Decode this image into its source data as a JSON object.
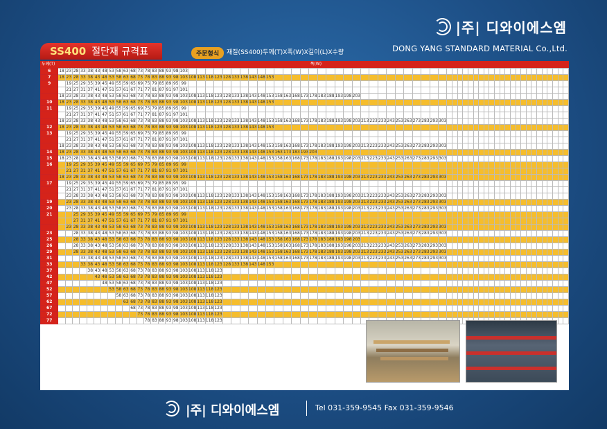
{
  "brand": {
    "name_kr": "|주| 디와이에스엠",
    "name_en": "DONG YANG STANDARD MATERIAL Co.,Ltd."
  },
  "title": {
    "main": "SS400",
    "sub": "절단재 규격표"
  },
  "order": {
    "badge": "주문형식",
    "text": "재질(SS400)두께(T)X폭(W)X길이(L)X수량"
  },
  "table": {
    "thickness_header": "두께(T)",
    "width_header": "폭(W)"
  },
  "footer": {
    "logo": "|주| 디와이에스엠",
    "tel": "Tel 031-359-9545  Fax 031-359-9546"
  },
  "rows": [
    {
      "t": "6",
      "y": false,
      "s": 0,
      "n": 15,
      "v": [
        18,
        23,
        28,
        33,
        38,
        43,
        48,
        53,
        58,
        63,
        68,
        73,
        78,
        83,
        88,
        93,
        98,
        103
      ]
    },
    {
      "t": "7",
      "y": true,
      "s": 0,
      "n": 19,
      "v": [
        18,
        23,
        28,
        33,
        38,
        43,
        48,
        53,
        58,
        63,
        68,
        73,
        78,
        83,
        88,
        93,
        98,
        103,
        108,
        113,
        118,
        123,
        128,
        133,
        138,
        143,
        148,
        153
      ]
    },
    {
      "t": "9",
      "y": false,
      "s": 1,
      "n": 0,
      "v": [
        19,
        25,
        29,
        35,
        39,
        45,
        49,
        55,
        59,
        65,
        69,
        75,
        79,
        85,
        89,
        95,
        99
      ]
    },
    {
      "t": "",
      "y": false,
      "s": 1,
      "n": 0,
      "v": [
        21,
        27,
        31,
        37,
        41,
        47,
        51,
        57,
        61,
        67,
        71,
        77,
        81,
        87,
        91,
        97,
        101
      ]
    },
    {
      "t": "",
      "y": false,
      "s": 0,
      "n": 0,
      "v": [
        18,
        23,
        28,
        33,
        38,
        43,
        48,
        53,
        58,
        63,
        68,
        73,
        78,
        83,
        88,
        93,
        98,
        103,
        108,
        113,
        118,
        123,
        128,
        133,
        138,
        143,
        148,
        153,
        158,
        163,
        168,
        173,
        178,
        183,
        188,
        193,
        198,
        203
      ]
    },
    {
      "t": "10",
      "y": true,
      "s": 0,
      "n": 0,
      "v": [
        18,
        23,
        28,
        33,
        38,
        43,
        48,
        53,
        58,
        63,
        68,
        73,
        78,
        83,
        88,
        93,
        98,
        103,
        108,
        113,
        118,
        123,
        128,
        133,
        138,
        143,
        148,
        153
      ]
    },
    {
      "t": "11",
      "y": false,
      "s": 1,
      "n": 0,
      "v": [
        19,
        25,
        29,
        35,
        39,
        45,
        49,
        55,
        59,
        65,
        69,
        75,
        79,
        85,
        89,
        95,
        99
      ]
    },
    {
      "t": "",
      "y": false,
      "s": 1,
      "n": 0,
      "v": [
        21,
        27,
        31,
        37,
        41,
        47,
        51,
        57,
        61,
        67,
        71,
        77,
        81,
        87,
        91,
        97,
        101
      ]
    },
    {
      "t": "",
      "y": false,
      "s": 0,
      "n": 0,
      "v": [
        18,
        23,
        28,
        33,
        38,
        43,
        48,
        53,
        58,
        63,
        68,
        73,
        78,
        83,
        88,
        93,
        98,
        103,
        108,
        113,
        118,
        123,
        128,
        133,
        138,
        143,
        148,
        153,
        158,
        163,
        168,
        173,
        178,
        183,
        188,
        193,
        198,
        203,
        213,
        223,
        233,
        243,
        253,
        263,
        273,
        283,
        293,
        303
      ]
    },
    {
      "t": "12",
      "y": true,
      "s": 0,
      "n": 0,
      "v": [
        18,
        23,
        28,
        33,
        38,
        43,
        48,
        53,
        58,
        63,
        68,
        73,
        78,
        83,
        88,
        93,
        98,
        103,
        108,
        113,
        118,
        123,
        128,
        133,
        138,
        143,
        148,
        153
      ]
    },
    {
      "t": "13",
      "y": false,
      "s": 1,
      "n": 0,
      "v": [
        19,
        25,
        29,
        35,
        39,
        45,
        49,
        55,
        59,
        65,
        69,
        75,
        79,
        85,
        89,
        95,
        99
      ]
    },
    {
      "t": "",
      "y": false,
      "s": 1,
      "n": 0,
      "v": [
        21,
        27,
        31,
        37,
        41,
        47,
        51,
        57,
        61,
        67,
        71,
        77,
        81,
        87,
        91,
        97,
        101
      ]
    },
    {
      "t": "",
      "y": false,
      "s": 0,
      "n": 0,
      "v": [
        18,
        23,
        28,
        33,
        38,
        43,
        48,
        53,
        58,
        63,
        68,
        73,
        78,
        83,
        88,
        93,
        98,
        103,
        108,
        113,
        118,
        123,
        128,
        133,
        138,
        143,
        148,
        153,
        158,
        163,
        168,
        173,
        178,
        183,
        188,
        193,
        198,
        203,
        213,
        223,
        233,
        243,
        253,
        263,
        273,
        283,
        293,
        303
      ]
    },
    {
      "t": "14",
      "y": true,
      "s": 0,
      "n": 0,
      "v": [
        18,
        23,
        28,
        33,
        38,
        43,
        48,
        53,
        58,
        63,
        68,
        73,
        78,
        83,
        88,
        93,
        98,
        103,
        108,
        113,
        118,
        123,
        128,
        133,
        138,
        143,
        148,
        153,
        163,
        173,
        183,
        193,
        203
      ]
    },
    {
      "t": "15",
      "y": false,
      "s": 0,
      "n": 0,
      "v": [
        18,
        23,
        28,
        33,
        38,
        43,
        48,
        53,
        58,
        63,
        68,
        73,
        78,
        83,
        88,
        93,
        98,
        103,
        108,
        113,
        118,
        123,
        128,
        133,
        138,
        143,
        148,
        153,
        158,
        163,
        168,
        173,
        178,
        183,
        188,
        193,
        198,
        203,
        213,
        223,
        233,
        243,
        253,
        263,
        273,
        283,
        293,
        303
      ]
    },
    {
      "t": "16",
      "y": true,
      "s": 1,
      "n": 0,
      "v": [
        19,
        25,
        29,
        35,
        39,
        45,
        49,
        55,
        59,
        65,
        69,
        75,
        79,
        85,
        89,
        95,
        99
      ]
    },
    {
      "t": "",
      "y": true,
      "s": 1,
      "n": 0,
      "v": [
        21,
        27,
        31,
        37,
        41,
        47,
        51,
        57,
        61,
        67,
        71,
        77,
        81,
        87,
        91,
        97,
        101
      ]
    },
    {
      "t": "",
      "y": true,
      "s": 0,
      "n": 0,
      "v": [
        18,
        23,
        28,
        33,
        38,
        43,
        48,
        53,
        58,
        63,
        68,
        73,
        78,
        83,
        88,
        93,
        98,
        103,
        108,
        113,
        118,
        123,
        128,
        133,
        138,
        143,
        148,
        153,
        158,
        163,
        168,
        173,
        178,
        183,
        188,
        193,
        198,
        203,
        213,
        223,
        233,
        243,
        253,
        263,
        273,
        283,
        293,
        303
      ]
    },
    {
      "t": "17",
      "y": false,
      "s": 1,
      "n": 0,
      "v": [
        19,
        25,
        29,
        35,
        39,
        45,
        49,
        55,
        59,
        65,
        69,
        75,
        79,
        85,
        89,
        95,
        99
      ]
    },
    {
      "t": "",
      "y": false,
      "s": 1,
      "n": 0,
      "v": [
        21,
        27,
        31,
        37,
        41,
        47,
        51,
        57,
        61,
        67,
        71,
        77,
        81,
        87,
        91,
        97,
        101
      ]
    },
    {
      "t": "",
      "y": false,
      "s": 1,
      "n": 0,
      "v": [
        23,
        28,
        33,
        38,
        43,
        48,
        53,
        58,
        63,
        68,
        73,
        78,
        83,
        88,
        93,
        98,
        103,
        108,
        113,
        118,
        123,
        128,
        133,
        138,
        143,
        148,
        153,
        158,
        163,
        168,
        173,
        178,
        183,
        188,
        193,
        198,
        203,
        213,
        223,
        233,
        243,
        253,
        263,
        273,
        283,
        293,
        303
      ]
    },
    {
      "t": "19",
      "y": true,
      "s": 1,
      "n": 0,
      "v": [
        23,
        28,
        33,
        38,
        43,
        48,
        53,
        58,
        63,
        68,
        73,
        78,
        83,
        88,
        93,
        98,
        103,
        108,
        113,
        118,
        123,
        128,
        133,
        138,
        143,
        148,
        153,
        158,
        163,
        168,
        173,
        178,
        183,
        188,
        193,
        198,
        203,
        213,
        223,
        233,
        243,
        253,
        263,
        273,
        283,
        293,
        303
      ]
    },
    {
      "t": "20",
      "y": false,
      "s": 1,
      "n": 0,
      "v": [
        23,
        28,
        33,
        38,
        43,
        48,
        53,
        58,
        63,
        68,
        73,
        78,
        83,
        88,
        93,
        98,
        103,
        108,
        113,
        118,
        123,
        128,
        133,
        138,
        143,
        148,
        153,
        158,
        163,
        168,
        173,
        178,
        183,
        188,
        193,
        198,
        203,
        213,
        223,
        233,
        243,
        253,
        263,
        273,
        283,
        293,
        303
      ]
    },
    {
      "t": "21",
      "y": true,
      "s": 2,
      "n": 0,
      "v": [
        25,
        29,
        35,
        39,
        45,
        49,
        55,
        59,
        65,
        69,
        75,
        79,
        85,
        89,
        95,
        99
      ]
    },
    {
      "t": "",
      "y": true,
      "s": 2,
      "n": 0,
      "v": [
        27,
        31,
        37,
        41,
        47,
        51,
        57,
        61,
        67,
        71,
        77,
        81,
        87,
        91,
        97,
        101
      ]
    },
    {
      "t": "",
      "y": true,
      "s": 1,
      "n": 0,
      "v": [
        23,
        28,
        33,
        38,
        43,
        48,
        53,
        58,
        63,
        68,
        73,
        78,
        83,
        88,
        93,
        98,
        103,
        108,
        113,
        118,
        123,
        128,
        133,
        138,
        143,
        148,
        153,
        158,
        163,
        168,
        173,
        178,
        183,
        188,
        193,
        198,
        203,
        213,
        223,
        233,
        243,
        253,
        263,
        273,
        283,
        293,
        303
      ]
    },
    {
      "t": "23",
      "y": false,
      "s": 2,
      "n": 0,
      "v": [
        28,
        33,
        38,
        43,
        48,
        53,
        58,
        63,
        68,
        73,
        78,
        83,
        88,
        93,
        98,
        103,
        108,
        113,
        118,
        123,
        128,
        133,
        138,
        143,
        148,
        153,
        158,
        163,
        168,
        173,
        178,
        183,
        188,
        193,
        198,
        203,
        213,
        223,
        233,
        243,
        253,
        263,
        273,
        283,
        293,
        303
      ]
    },
    {
      "t": "25",
      "y": true,
      "s": 2,
      "n": 0,
      "v": [
        28,
        33,
        38,
        43,
        48,
        53,
        58,
        63,
        68,
        73,
        78,
        83,
        88,
        93,
        98,
        103,
        108,
        113,
        118,
        123,
        128,
        133,
        138,
        143,
        148,
        153,
        158,
        163,
        168,
        173,
        178,
        183,
        188,
        193,
        198,
        203
      ]
    },
    {
      "t": "26",
      "y": false,
      "s": 2,
      "n": 0,
      "v": [
        28,
        33,
        38,
        43,
        48,
        53,
        58,
        63,
        68,
        73,
        78,
        83,
        88,
        93,
        98,
        103,
        108,
        113,
        118,
        123,
        128,
        133,
        138,
        143,
        148,
        153,
        158,
        163,
        168,
        173,
        178,
        183,
        188,
        193,
        198,
        203,
        213,
        223,
        233,
        243,
        253,
        263,
        273,
        283,
        293,
        303
      ]
    },
    {
      "t": "29",
      "y": true,
      "s": 2,
      "n": 0,
      "v": [
        28,
        33,
        38,
        43,
        48,
        53,
        58,
        63,
        68,
        73,
        78,
        83,
        88,
        93,
        98,
        103,
        108,
        113,
        118,
        123,
        128,
        133,
        138,
        143,
        148,
        153,
        158,
        163,
        168,
        173,
        178,
        183,
        188,
        193,
        198,
        203,
        213,
        223,
        233,
        243,
        253,
        263,
        273,
        283,
        293,
        303
      ]
    },
    {
      "t": "31",
      "y": false,
      "s": 3,
      "n": 0,
      "v": [
        33,
        38,
        43,
        48,
        53,
        58,
        63,
        68,
        73,
        78,
        83,
        88,
        93,
        98,
        103,
        108,
        113,
        118,
        123,
        128,
        133,
        138,
        143,
        148,
        153,
        158,
        163,
        168,
        173,
        178,
        183,
        188,
        193,
        198,
        203,
        213,
        223,
        233,
        243,
        253,
        263,
        273,
        283,
        293,
        303
      ]
    },
    {
      "t": "33",
      "y": true,
      "s": 3,
      "n": 0,
      "v": [
        33,
        38,
        43,
        48,
        53,
        58,
        63,
        68,
        73,
        78,
        83,
        88,
        93,
        98,
        103,
        108,
        113,
        118,
        123,
        128,
        133,
        138,
        143,
        148,
        153
      ]
    },
    {
      "t": "37",
      "y": false,
      "s": 4,
      "n": 0,
      "v": [
        38,
        43,
        48,
        53,
        58,
        63,
        68,
        73,
        78,
        83,
        88,
        93,
        98,
        103,
        108,
        113,
        118,
        123
      ]
    },
    {
      "t": "42",
      "y": true,
      "s": 5,
      "n": 0,
      "v": [
        43,
        48,
        53,
        58,
        63,
        68,
        73,
        78,
        83,
        88,
        93,
        98,
        103,
        108,
        113,
        118,
        123
      ]
    },
    {
      "t": "47",
      "y": false,
      "s": 6,
      "n": 0,
      "v": [
        48,
        53,
        58,
        63,
        68,
        73,
        78,
        83,
        88,
        93,
        98,
        103,
        108,
        113,
        118,
        123
      ]
    },
    {
      "t": "52",
      "y": true,
      "s": 7,
      "n": 0,
      "v": [
        53,
        58,
        63,
        68,
        73,
        78,
        83,
        88,
        93,
        98,
        103,
        108,
        113,
        118,
        123
      ]
    },
    {
      "t": "57",
      "y": false,
      "s": 8,
      "n": 0,
      "v": [
        58,
        63,
        68,
        73,
        78,
        83,
        88,
        93,
        98,
        103,
        108,
        113,
        118,
        123
      ]
    },
    {
      "t": "62",
      "y": true,
      "s": 9,
      "n": 0,
      "v": [
        63,
        68,
        73,
        78,
        83,
        88,
        93,
        98,
        103,
        108,
        113,
        118,
        123
      ]
    },
    {
      "t": "67",
      "y": false,
      "s": 10,
      "n": 0,
      "v": [
        68,
        73,
        78,
        83,
        88,
        93,
        98,
        103,
        108,
        113,
        118,
        123
      ]
    },
    {
      "t": "72",
      "y": true,
      "s": 11,
      "n": 0,
      "v": [
        73,
        78,
        83,
        88,
        93,
        98,
        103,
        108,
        113,
        118,
        123
      ]
    },
    {
      "t": "77",
      "y": false,
      "s": 12,
      "n": 0,
      "v": [
        78,
        83,
        88,
        93,
        98,
        103,
        108,
        113,
        118,
        123
      ]
    }
  ]
}
